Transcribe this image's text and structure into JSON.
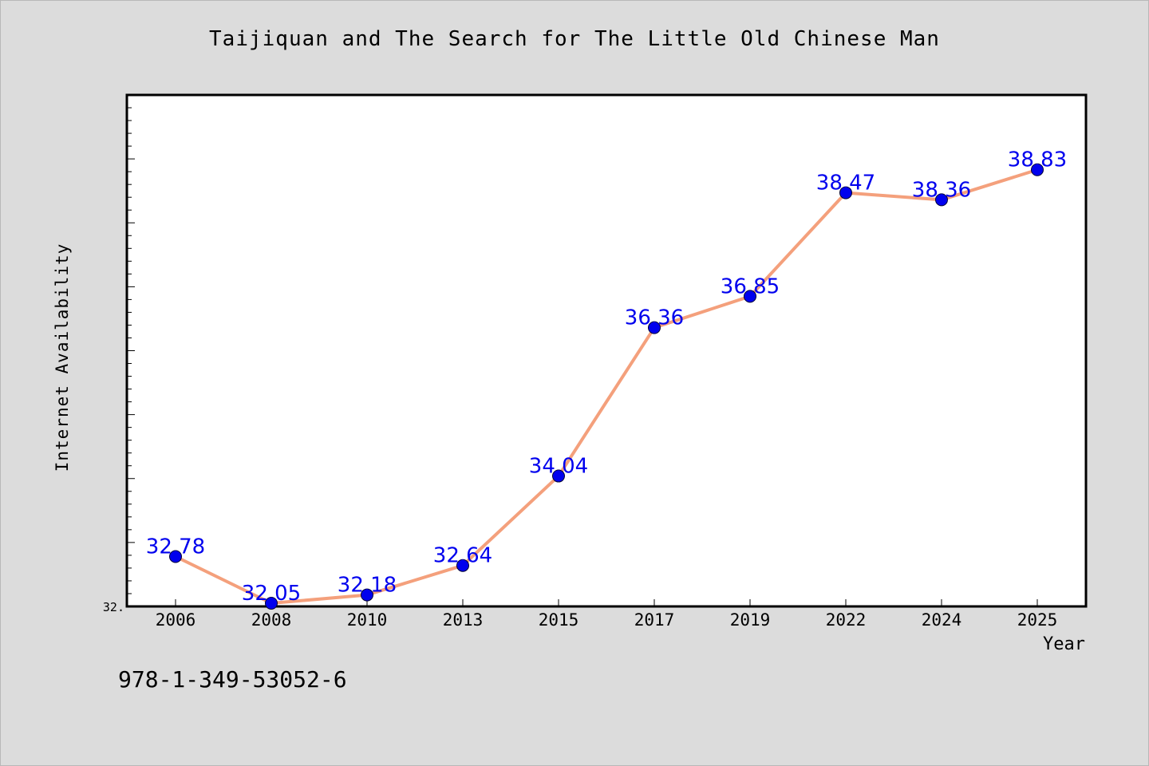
{
  "page": {
    "footer_text": "978-1-349-53052-6"
  },
  "chart_data": {
    "type": "line",
    "title": "Taijiquan and The Search for The Little Old Chinese Man",
    "xlabel": "Year",
    "ylabel": "Internet Availability",
    "categories": [
      "2006",
      "2008",
      "2010",
      "2013",
      "2015",
      "2017",
      "2019",
      "2022",
      "2024",
      "2025"
    ],
    "series": [
      {
        "values": [
          32.78,
          32.05,
          32.18,
          32.64,
          34.04,
          36.36,
          36.85,
          38.47,
          38.36,
          38.83
        ]
      }
    ],
    "data_labels": [
      "32.78",
      "32.05",
      "32.18",
      "32.64",
      "34.04",
      "36.36",
      "36.85",
      "38.47",
      "38.36",
      "38.83"
    ],
    "y_tick_labels": [
      "32."
    ],
    "ylim": [
      32.0,
      40.0
    ],
    "grid": false,
    "colors": {
      "line": "#f4a07c",
      "marker": "#0000ee",
      "data_label": "#0000ee",
      "plot_background": "#ffffff",
      "page_background": "#dcdcdc"
    }
  }
}
